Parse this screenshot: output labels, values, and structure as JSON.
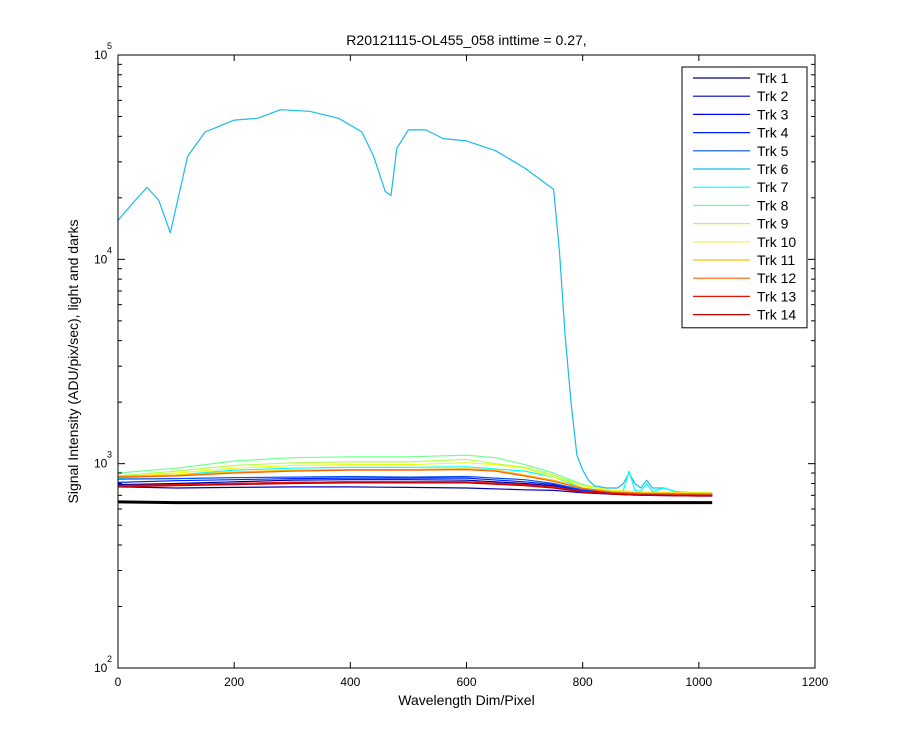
{
  "chart_data": {
    "type": "line",
    "title": "R20121115-OL455_058 inttime = 0.27,",
    "xlabel": "Wavelength Dim/Pixel",
    "ylabel": "Signal Intensity (ADU/pix/sec), light and darks",
    "xlim": [
      0,
      1200
    ],
    "ylim": [
      100,
      100000
    ],
    "yscale": "log",
    "grid": false,
    "legend_position": "top-right",
    "x_ticks": [
      {
        "value": 0,
        "label": "0"
      },
      {
        "value": 200,
        "label": "200"
      },
      {
        "value": 400,
        "label": "400"
      },
      {
        "value": 600,
        "label": "600"
      },
      {
        "value": 800,
        "label": "800"
      },
      {
        "value": 1000,
        "label": "1000"
      },
      {
        "value": 1200,
        "label": "1200"
      }
    ],
    "y_ticks": [
      {
        "value": 100,
        "base": "10",
        "exp": "2"
      },
      {
        "value": 1000,
        "base": "10",
        "exp": "3"
      },
      {
        "value": 10000,
        "base": "10",
        "exp": "4"
      },
      {
        "value": 100000,
        "base": "10",
        "exp": "5"
      }
    ],
    "series": [
      {
        "name": "Trk 1",
        "color": "#00008F",
        "x": [
          0,
          100,
          200,
          300,
          400,
          500,
          600,
          700,
          750,
          800,
          850,
          900,
          1000,
          1023
        ],
        "y": [
          790,
          800,
          815,
          830,
          835,
          835,
          830,
          800,
          780,
          730,
          715,
          705,
          700,
          700
        ]
      },
      {
        "name": "Trk 2",
        "color": "#0000BF",
        "x": [
          0,
          100,
          200,
          300,
          400,
          500,
          600,
          700,
          750,
          800,
          850,
          900,
          1000,
          1023
        ],
        "y": [
          770,
          760,
          765,
          770,
          770,
          765,
          760,
          745,
          740,
          720,
          710,
          700,
          695,
          695
        ]
      },
      {
        "name": "Trk 3",
        "color": "#0000EF",
        "x": [
          0,
          100,
          200,
          300,
          400,
          500,
          600,
          700,
          750,
          800,
          850,
          900,
          1000,
          1023
        ],
        "y": [
          780,
          790,
          800,
          810,
          815,
          815,
          815,
          790,
          770,
          730,
          715,
          705,
          700,
          700
        ]
      },
      {
        "name": "Trk 4",
        "color": "#0020FF",
        "x": [
          0,
          100,
          200,
          300,
          400,
          500,
          600,
          700,
          750,
          800,
          850,
          900,
          1000,
          1023
        ],
        "y": [
          810,
          825,
          835,
          845,
          850,
          850,
          850,
          815,
          790,
          740,
          720,
          710,
          705,
          705
        ]
      },
      {
        "name": "Trk 5",
        "color": "#0050FF",
        "x": [
          0,
          100,
          200,
          300,
          400,
          500,
          600,
          700,
          750,
          800,
          850,
          900,
          1000,
          1023
        ],
        "y": [
          840,
          845,
          855,
          860,
          865,
          860,
          865,
          835,
          800,
          745,
          725,
          715,
          710,
          710
        ]
      },
      {
        "name": "Trk 6",
        "color": "#17BCEB",
        "x": [
          0,
          30,
          50,
          70,
          90,
          120,
          150,
          200,
          240,
          280,
          330,
          380,
          420,
          440,
          460,
          470,
          480,
          500,
          530,
          560,
          600,
          650,
          700,
          750,
          760,
          770,
          780,
          790,
          800,
          810,
          820,
          840,
          860,
          870,
          880,
          890,
          900,
          910,
          920,
          940,
          960,
          980,
          1000,
          1023
        ],
        "y": [
          15500,
          19500,
          22500,
          19500,
          13500,
          32000,
          42000,
          48000,
          49000,
          54000,
          53000,
          49000,
          42000,
          32000,
          21500,
          20500,
          35000,
          43000,
          43000,
          39000,
          38000,
          34000,
          28000,
          22000,
          11000,
          4200,
          2000,
          1100,
          930,
          830,
          780,
          760,
          760,
          800,
          900,
          800,
          760,
          830,
          760,
          760,
          730,
          720,
          715,
          710
        ]
      },
      {
        "name": "Trk 7",
        "color": "#00FFFF",
        "x": [
          0,
          100,
          200,
          300,
          400,
          500,
          600,
          700,
          750,
          800,
          850,
          870,
          880,
          890,
          900,
          910,
          920,
          940,
          960,
          1000,
          1023
        ],
        "y": [
          850,
          880,
          930,
          950,
          960,
          960,
          965,
          920,
          860,
          760,
          730,
          740,
          920,
          740,
          730,
          800,
          730,
          760,
          730,
          720,
          720
        ]
      },
      {
        "name": "Trk 8",
        "color": "#70FF8F",
        "x": [
          0,
          100,
          200,
          300,
          400,
          500,
          600,
          650,
          700,
          750,
          800,
          850,
          900,
          1000,
          1023
        ],
        "y": [
          900,
          950,
          1030,
          1070,
          1080,
          1080,
          1100,
          1070,
          990,
          900,
          790,
          740,
          725,
          720,
          720
        ]
      },
      {
        "name": "Trk 9",
        "color": "#B0FF50",
        "x": [
          0,
          100,
          200,
          300,
          400,
          500,
          600,
          650,
          700,
          750,
          800,
          850,
          900,
          1000,
          1023
        ],
        "y": [
          870,
          920,
          980,
          1010,
          1020,
          1020,
          1050,
          1000,
          960,
          880,
          780,
          740,
          725,
          720,
          720
        ]
      },
      {
        "name": "Trk 10",
        "color": "#EFFF10",
        "x": [
          0,
          100,
          200,
          300,
          400,
          500,
          600,
          650,
          700,
          750,
          800,
          850,
          900,
          1000,
          1023
        ],
        "y": [
          860,
          900,
          950,
          980,
          990,
          990,
          1010,
          990,
          950,
          860,
          780,
          740,
          725,
          720,
          720
        ]
      },
      {
        "name": "Trk 11",
        "color": "#FFC000",
        "x": [
          0,
          100,
          200,
          300,
          400,
          500,
          600,
          650,
          700,
          750,
          800,
          850,
          900,
          1000,
          1023
        ],
        "y": [
          870,
          880,
          910,
          930,
          935,
          935,
          945,
          930,
          880,
          830,
          760,
          730,
          720,
          715,
          715
        ]
      },
      {
        "name": "Trk 12",
        "color": "#FF6000",
        "x": [
          0,
          100,
          200,
          300,
          400,
          500,
          600,
          650,
          700,
          750,
          800,
          850,
          900,
          1000,
          1023
        ],
        "y": [
          860,
          870,
          900,
          920,
          930,
          930,
          935,
          920,
          870,
          820,
          755,
          725,
          715,
          710,
          710
        ]
      },
      {
        "name": "Trk 13",
        "color": "#EF1000",
        "x": [
          0,
          100,
          200,
          300,
          400,
          500,
          600,
          700,
          750,
          800,
          850,
          900,
          1000,
          1023
        ],
        "y": [
          780,
          790,
          800,
          810,
          815,
          815,
          815,
          790,
          770,
          730,
          715,
          705,
          700,
          700
        ]
      },
      {
        "name": "Trk 14",
        "color": "#BF0000",
        "x": [
          0,
          100,
          200,
          300,
          400,
          500,
          600,
          700,
          750,
          800,
          850,
          900,
          1000,
          1023
        ],
        "y": [
          770,
          780,
          790,
          800,
          805,
          805,
          805,
          780,
          760,
          725,
          710,
          700,
          695,
          695
        ]
      },
      {
        "color": "#000000",
        "x": [
          0,
          100,
          200,
          300,
          400,
          500,
          600,
          700,
          800,
          900,
          1000,
          1023
        ],
        "y": [
          650,
          645,
          645,
          645,
          645,
          645,
          645,
          645,
          645,
          645,
          645,
          645
        ]
      }
    ]
  }
}
